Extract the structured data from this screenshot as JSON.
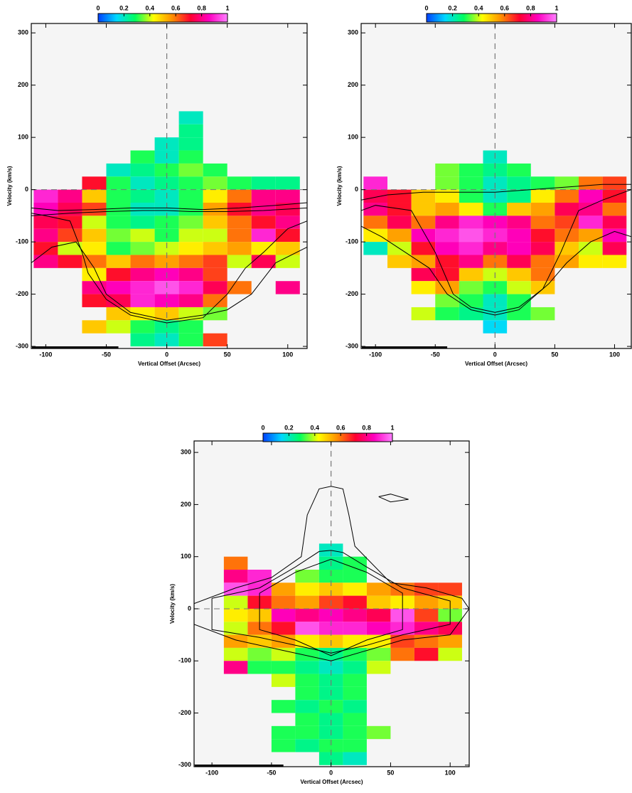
{
  "chart_data": [
    {
      "type": "heatmap",
      "xlabel": "Vertical Offset (Arcsec)",
      "ylabel": "Velocity (km/s)",
      "xlim": [
        -112,
        116
      ],
      "ylim": [
        -304,
        318
      ],
      "xticks": [
        -100,
        -50,
        0,
        50,
        100
      ],
      "yticks": [
        -300,
        -200,
        -100,
        0,
        100,
        200,
        300
      ],
      "clim": [
        0,
        1
      ],
      "cticks": [
        0,
        0.2,
        0.4,
        0.6,
        0.8,
        1
      ],
      "colormap": [
        "#0040ff",
        "#00d8ff",
        "#00ff60",
        "#ffff00",
        "#ff9000",
        "#ff0030",
        "#ff00c0",
        "#ff80ff"
      ],
      "vline": 0,
      "hline": 0,
      "x_edges": [
        -110,
        -90,
        -70,
        -50,
        -30,
        -10,
        10,
        30,
        50,
        70,
        90,
        110
      ],
      "y_edges": [
        150,
        125,
        100,
        75,
        50,
        25,
        0,
        -25,
        -50,
        -75,
        -100,
        -125,
        -150,
        -175,
        -200,
        -225,
        -250,
        -275,
        -300
      ],
      "z": [
        [
          null,
          null,
          null,
          null,
          null,
          null,
          0.2,
          null,
          null,
          null,
          null
        ],
        [
          null,
          null,
          null,
          null,
          null,
          null,
          0.25,
          null,
          null,
          null,
          null
        ],
        [
          null,
          null,
          null,
          null,
          null,
          0.2,
          0.25,
          null,
          null,
          null,
          null
        ],
        [
          null,
          null,
          null,
          null,
          0.3,
          0.2,
          0.3,
          null,
          null,
          null,
          null
        ],
        [
          null,
          null,
          null,
          0.2,
          0.25,
          0.3,
          0.35,
          0.3,
          null,
          null,
          null
        ],
        [
          null,
          null,
          0.7,
          0.3,
          0.2,
          0.25,
          0.3,
          0.35,
          0.3,
          0.25,
          0.25
        ],
        [
          0.9,
          0.8,
          0.5,
          0.3,
          0.25,
          0.2,
          0.3,
          0.45,
          0.6,
          0.8,
          0.8
        ],
        [
          0.85,
          0.75,
          0.65,
          0.3,
          0.2,
          0.2,
          0.3,
          0.55,
          0.7,
          0.8,
          0.75
        ],
        [
          0.75,
          0.7,
          0.4,
          0.3,
          0.25,
          0.3,
          0.35,
          0.5,
          0.6,
          0.7,
          0.8
        ],
        [
          0.8,
          0.65,
          0.5,
          0.35,
          0.4,
          0.3,
          0.4,
          0.4,
          0.6,
          0.9,
          0.7
        ],
        [
          0.7,
          0.4,
          0.45,
          0.3,
          0.35,
          0.4,
          0.45,
          0.5,
          0.55,
          0.45,
          0.5
        ],
        [
          0.8,
          0.7,
          0.6,
          0.5,
          0.6,
          0.55,
          0.6,
          0.65,
          0.4,
          0.75,
          0.4
        ],
        [
          null,
          null,
          0.45,
          0.7,
          0.8,
          0.85,
          0.8,
          0.65,
          null,
          null,
          null
        ],
        [
          null,
          null,
          0.8,
          0.85,
          0.9,
          0.95,
          0.9,
          0.75,
          0.6,
          null,
          0.8
        ],
        [
          null,
          null,
          0.7,
          0.75,
          0.9,
          0.85,
          0.8,
          0.6,
          null,
          null,
          null
        ],
        [
          null,
          null,
          null,
          0.5,
          0.45,
          0.5,
          0.4,
          0.35,
          null,
          null,
          null
        ],
        [
          null,
          null,
          0.5,
          0.4,
          0.3,
          0.25,
          0.3,
          null,
          null,
          null,
          null
        ],
        [
          null,
          null,
          null,
          null,
          0.25,
          0.2,
          0.3,
          0.65,
          null,
          null,
          null
        ]
      ],
      "contours": [
        {
          "x": [
            -112,
            -90,
            -60,
            -30,
            0,
            30,
            60,
            90,
            116
          ],
          "y": [
            -35,
            -40,
            -38,
            -35,
            -35,
            -38,
            -35,
            -30,
            -25
          ]
        },
        {
          "x": [
            -112,
            -80,
            -50,
            -20,
            0,
            20,
            50,
            80,
            116
          ],
          "y": [
            -50,
            -45,
            -42,
            -40,
            -40,
            -42,
            -42,
            -40,
            -35
          ]
        },
        {
          "x": [
            -112,
            -100,
            -80,
            -70,
            -65,
            -50,
            -30,
            0,
            30,
            50,
            65,
            80,
            100,
            116
          ],
          "y": [
            -45,
            -50,
            -60,
            -120,
            -160,
            -210,
            -240,
            -255,
            -245,
            -200,
            -150,
            -120,
            -75,
            -60
          ]
        },
        {
          "x": [
            -112,
            -95,
            -75,
            -60,
            -50,
            -30,
            0,
            30,
            50,
            70,
            90,
            116
          ],
          "y": [
            -140,
            -110,
            -100,
            -150,
            -200,
            -235,
            -250,
            -240,
            -230,
            -200,
            -140,
            -110
          ]
        }
      ]
    },
    {
      "type": "heatmap",
      "xlabel": "Vertical Offset (Arcsec)",
      "ylabel": "Velocity (km/s)",
      "xlim": [
        -112,
        114
      ],
      "ylim": [
        -304,
        318
      ],
      "xticks": [
        -100,
        -50,
        0,
        50,
        100
      ],
      "yticks": [
        -300,
        -200,
        -100,
        0,
        100,
        200,
        300
      ],
      "clim": [
        0,
        1
      ],
      "cticks": [
        0,
        0.2,
        0.4,
        0.6,
        0.8,
        1
      ],
      "colormap": [
        "#0040ff",
        "#00d8ff",
        "#00ff60",
        "#ffff00",
        "#ff9000",
        "#ff0030",
        "#ff00c0",
        "#ff80ff"
      ],
      "vline": 0,
      "hline": 0,
      "x_edges": [
        -110,
        -90,
        -70,
        -50,
        -30,
        -10,
        10,
        30,
        50,
        70,
        90,
        110
      ],
      "y_edges": [
        150,
        125,
        100,
        75,
        50,
        25,
        0,
        -25,
        -50,
        -75,
        -100,
        -125,
        -150,
        -175,
        -200,
        -225,
        -250,
        -275,
        -300
      ],
      "z": [
        [
          null,
          null,
          null,
          null,
          null,
          null,
          null,
          null,
          null,
          null,
          null
        ],
        [
          null,
          null,
          null,
          null,
          null,
          null,
          null,
          null,
          null,
          null,
          null
        ],
        [
          null,
          null,
          null,
          null,
          null,
          null,
          null,
          null,
          null,
          null,
          null
        ],
        [
          null,
          null,
          null,
          null,
          null,
          0.2,
          null,
          null,
          null,
          null,
          null
        ],
        [
          null,
          null,
          null,
          0.35,
          0.3,
          0.25,
          0.3,
          null,
          null,
          null,
          null
        ],
        [
          0.9,
          null,
          null,
          0.35,
          0.3,
          0.2,
          0.25,
          0.3,
          0.35,
          0.6,
          0.65
        ],
        [
          0.75,
          0.7,
          0.5,
          0.45,
          0.3,
          0.2,
          0.25,
          0.45,
          0.6,
          0.85,
          0.7
        ],
        [
          0.8,
          0.7,
          0.5,
          0.55,
          0.45,
          0.3,
          0.5,
          0.55,
          0.75,
          0.8,
          0.6
        ],
        [
          0.6,
          0.75,
          0.6,
          0.8,
          0.9,
          0.85,
          0.8,
          0.6,
          0.65,
          0.9,
          0.75
        ],
        [
          0.45,
          0.55,
          0.85,
          0.9,
          0.95,
          0.9,
          0.85,
          0.7,
          0.6,
          0.55,
          0.85
        ],
        [
          0.2,
          0.4,
          0.7,
          0.85,
          0.9,
          0.8,
          0.85,
          0.75,
          0.5,
          0.4,
          0.75
        ],
        [
          null,
          0.5,
          0.55,
          0.7,
          0.8,
          0.6,
          0.75,
          0.6,
          0.55,
          0.45,
          0.45
        ],
        [
          null,
          null,
          0.75,
          0.7,
          0.5,
          0.4,
          0.5,
          0.6,
          null,
          null,
          null
        ],
        [
          null,
          null,
          0.45,
          0.55,
          0.35,
          0.3,
          0.4,
          0.5,
          null,
          null,
          null
        ],
        [
          null,
          null,
          null,
          0.35,
          0.3,
          0.2,
          0.3,
          null,
          null,
          null,
          null
        ],
        [
          null,
          null,
          0.4,
          0.3,
          0.25,
          0.2,
          0.3,
          0.35,
          null,
          null,
          null
        ],
        [
          null,
          null,
          null,
          null,
          null,
          0.15,
          null,
          null,
          null,
          null,
          null
        ],
        [
          null,
          null,
          null,
          null,
          null,
          null,
          null,
          null,
          null,
          null,
          null
        ]
      ],
      "contours": [
        {
          "x": [
            -112,
            -90,
            -60,
            -30,
            0,
            30,
            60,
            90,
            114
          ],
          "y": [
            -20,
            -10,
            -5,
            -5,
            -5,
            0,
            5,
            10,
            10
          ]
        },
        {
          "x": [
            -112,
            -100,
            -70,
            -50,
            -35,
            -20,
            0,
            20,
            40,
            55,
            70,
            90,
            114
          ],
          "y": [
            -40,
            -30,
            -40,
            -120,
            -200,
            -225,
            -235,
            -225,
            -190,
            -120,
            -40,
            -20,
            0
          ]
        },
        {
          "x": [
            -112,
            -95,
            -75,
            -55,
            -40,
            -20,
            0,
            20,
            45,
            60,
            80,
            100,
            114
          ],
          "y": [
            -70,
            -90,
            -120,
            -150,
            -200,
            -230,
            -240,
            -230,
            -180,
            -140,
            -100,
            -80,
            -90
          ]
        }
      ]
    },
    {
      "type": "heatmap",
      "xlabel": "Vertical Offset (Arcsec)",
      "ylabel": "Velocity (km/s)",
      "xlim": [
        -115,
        116
      ],
      "ylim": [
        -303,
        322
      ],
      "xticks": [
        -100,
        -50,
        0,
        50,
        100
      ],
      "yticks": [
        -300,
        -200,
        -100,
        0,
        100,
        200,
        300
      ],
      "clim": [
        0,
        1
      ],
      "cticks": [
        0,
        0.2,
        0.4,
        0.6,
        0.8,
        1
      ],
      "colormap": [
        "#0040ff",
        "#00d8ff",
        "#00ff60",
        "#ffff00",
        "#ff9000",
        "#ff0030",
        "#ff00c0",
        "#ff80ff"
      ],
      "vline": 0,
      "hline": 0,
      "x_edges": [
        -110,
        -90,
        -70,
        -50,
        -30,
        -10,
        10,
        30,
        50,
        70,
        90,
        110
      ],
      "y_edges": [
        150,
        125,
        100,
        75,
        50,
        25,
        0,
        -25,
        -50,
        -75,
        -100,
        -125,
        -150,
        -175,
        -200,
        -225,
        -250,
        -275,
        -300
      ],
      "z": [
        [
          null,
          null,
          null,
          null,
          null,
          null,
          null,
          null,
          null,
          null,
          null
        ],
        [
          null,
          null,
          null,
          null,
          null,
          0.2,
          null,
          null,
          null,
          null,
          null
        ],
        [
          null,
          0.6,
          null,
          null,
          null,
          0.25,
          0.3,
          null,
          null,
          null,
          null
        ],
        [
          null,
          0.8,
          0.9,
          null,
          0.35,
          0.3,
          0.3,
          null,
          null,
          null,
          null
        ],
        [
          null,
          0.95,
          0.9,
          0.55,
          0.45,
          0.5,
          0.45,
          0.55,
          0.6,
          0.65,
          0.65
        ],
        [
          null,
          0.4,
          0.7,
          0.6,
          0.55,
          0.65,
          0.7,
          0.5,
          0.45,
          0.55,
          0.5
        ],
        [
          null,
          0.45,
          0.5,
          0.85,
          0.8,
          0.85,
          0.8,
          0.75,
          0.95,
          0.65,
          0.35
        ],
        [
          null,
          0.4,
          0.6,
          0.7,
          0.95,
          0.9,
          0.9,
          0.85,
          0.9,
          0.8,
          0.75
        ],
        [
          null,
          0.55,
          0.5,
          0.55,
          0.45,
          0.5,
          0.45,
          0.45,
          0.65,
          0.6,
          0.55
        ],
        [
          null,
          0.4,
          0.35,
          0.4,
          0.3,
          0.25,
          0.3,
          0.35,
          0.6,
          0.7,
          0.4
        ],
        [
          null,
          0.8,
          0.3,
          0.3,
          0.25,
          0.2,
          0.25,
          0.4,
          null,
          null,
          null
        ],
        [
          null,
          null,
          null,
          0.4,
          0.3,
          0.25,
          0.3,
          null,
          null,
          null,
          null
        ],
        [
          null,
          null,
          null,
          null,
          0.3,
          0.25,
          0.3,
          null,
          null,
          null,
          null
        ],
        [
          null,
          null,
          null,
          0.3,
          0.25,
          0.3,
          0.25,
          null,
          null,
          null,
          null
        ],
        [
          null,
          null,
          null,
          null,
          0.3,
          0.25,
          0.3,
          null,
          null,
          null,
          null
        ],
        [
          null,
          null,
          null,
          0.3,
          0.3,
          0.25,
          0.3,
          0.35,
          null,
          null,
          null
        ],
        [
          null,
          null,
          null,
          0.3,
          0.25,
          0.3,
          0.3,
          null,
          null,
          null,
          null
        ],
        [
          null,
          null,
          null,
          null,
          null,
          0.25,
          0.2,
          null,
          null,
          null,
          null
        ]
      ],
      "contours": [
        {
          "x": [
            -115,
            -80,
            -50,
            -25,
            -20,
            -10,
            0,
            10,
            15,
            20,
            50,
            80,
            110,
            116,
            100,
            60,
            30,
            0,
            -40,
            -80,
            -115
          ],
          "y": [
            10,
            40,
            60,
            100,
            180,
            230,
            235,
            230,
            180,
            120,
            50,
            40,
            20,
            0,
            -50,
            -60,
            -80,
            -100,
            -80,
            -60,
            -30
          ]
        },
        {
          "x": [
            -100,
            -60,
            -30,
            -10,
            0,
            10,
            30,
            60,
            100,
            100,
            60,
            30,
            0,
            -30,
            -60,
            -100,
            -100
          ],
          "y": [
            20,
            40,
            80,
            110,
            112,
            108,
            80,
            40,
            15,
            -30,
            -50,
            -70,
            -85,
            -70,
            -55,
            -40,
            20
          ]
        },
        {
          "x": [
            -60,
            -30,
            0,
            30,
            60,
            60,
            30,
            0,
            -30,
            -60,
            -60
          ],
          "y": [
            30,
            70,
            95,
            70,
            30,
            -40,
            -60,
            -90,
            -60,
            -40,
            30
          ]
        },
        {
          "x": [
            40,
            50,
            65,
            50,
            40
          ],
          "y": [
            215,
            205,
            210,
            220,
            215
          ]
        }
      ]
    }
  ]
}
